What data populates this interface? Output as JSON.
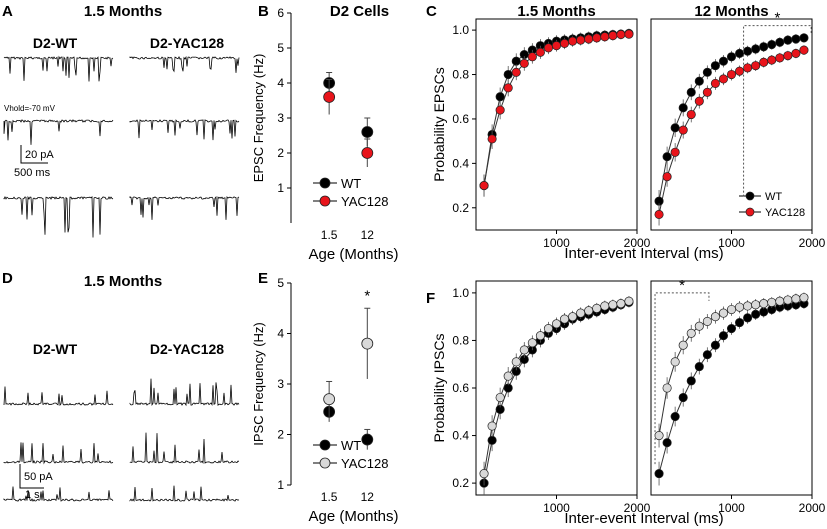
{
  "panel_letters": {
    "a": "A",
    "b": "B",
    "c": "C",
    "d": "D",
    "e": "E",
    "f": "F"
  },
  "traces": {
    "top_title": "1.5 Months",
    "bottom_title": "1.5 Months",
    "wt_label": "D2-WT",
    "yac_label": "D2-YAC128",
    "vhold_label": "Vhold=-70 mV",
    "epsc_scale_amp": "20 pA",
    "epsc_scale_time": "500 ms",
    "ipsc_scale_amp": "50 pA",
    "ipsc_scale_time": "1 s"
  },
  "colors": {
    "wt": "#000000",
    "yac_epsc": "#e8141b",
    "yac_ipsc": "#d9d9d9"
  },
  "chart_data": [
    {
      "id": "B",
      "type": "scatter",
      "title": "D2 Cells",
      "xlabel": "Age (Months)",
      "ylabel": "EPSC Frequency (Hz)",
      "categories": [
        "1.5",
        "12"
      ],
      "ylim": [
        0,
        6
      ],
      "yticks": [
        1,
        2,
        3,
        4,
        5,
        6
      ],
      "series": [
        {
          "name": "WT",
          "values": [
            4.0,
            2.6
          ],
          "err": [
            0.3,
            0.4
          ]
        },
        {
          "name": "YAC128",
          "values": [
            3.6,
            2.0
          ],
          "err": [
            0.5,
            0.4
          ]
        }
      ],
      "legend": "bottom-left"
    },
    {
      "id": "C1",
      "type": "line",
      "title": "1.5 Months",
      "xlabel": "",
      "ylabel": "Probability EPSCs",
      "xlim": [
        0,
        2000
      ],
      "xticks": [
        1000,
        2000
      ],
      "ylim": [
        0.1,
        1.05
      ],
      "yticks": [
        0.2,
        0.4,
        0.6,
        0.8,
        1.0
      ],
      "x": [
        100,
        200,
        300,
        400,
        500,
        600,
        700,
        800,
        900,
        1000,
        1100,
        1200,
        1300,
        1400,
        1500,
        1600,
        1700,
        1800,
        1900
      ],
      "series": [
        {
          "name": "WT",
          "values": [
            0.3,
            0.53,
            0.7,
            0.8,
            0.86,
            0.89,
            0.91,
            0.93,
            0.94,
            0.95,
            0.955,
            0.96,
            0.965,
            0.97,
            0.975,
            0.977,
            0.98,
            0.982,
            0.985
          ]
        },
        {
          "name": "YAC128",
          "values": [
            0.3,
            0.51,
            0.64,
            0.74,
            0.81,
            0.85,
            0.88,
            0.9,
            0.92,
            0.93,
            0.94,
            0.95,
            0.955,
            0.96,
            0.965,
            0.97,
            0.975,
            0.98,
            0.982
          ]
        }
      ]
    },
    {
      "id": "C2",
      "type": "line",
      "title": "12 Months",
      "annotation": "*",
      "xlabel": "Inter-event Interval (ms)",
      "ylabel": "",
      "xlim": [
        0,
        2000
      ],
      "xticks": [
        1000,
        2000
      ],
      "ylim": [
        0.1,
        1.05
      ],
      "x": [
        100,
        200,
        300,
        400,
        500,
        600,
        700,
        800,
        900,
        1000,
        1100,
        1200,
        1300,
        1400,
        1500,
        1600,
        1700,
        1800,
        1900
      ],
      "series": [
        {
          "name": "WT",
          "values": [
            0.23,
            0.43,
            0.56,
            0.65,
            0.72,
            0.77,
            0.81,
            0.84,
            0.86,
            0.88,
            0.895,
            0.905,
            0.915,
            0.925,
            0.935,
            0.945,
            0.955,
            0.96,
            0.965
          ]
        },
        {
          "name": "YAC128",
          "values": [
            0.17,
            0.34,
            0.45,
            0.55,
            0.62,
            0.68,
            0.72,
            0.76,
            0.78,
            0.8,
            0.815,
            0.83,
            0.84,
            0.855,
            0.865,
            0.875,
            0.885,
            0.895,
            0.91
          ]
        }
      ],
      "legend": [
        "WT",
        "YAC128"
      ]
    },
    {
      "id": "E",
      "type": "scatter",
      "annotation": "*",
      "xlabel": "Age (Months)",
      "ylabel": "IPSC Frequency (Hz)",
      "categories": [
        "1.5",
        "12"
      ],
      "ylim": [
        1,
        5
      ],
      "yticks": [
        1,
        2,
        3,
        4,
        5
      ],
      "series": [
        {
          "name": "WT",
          "values": [
            2.45,
            1.9
          ],
          "err": [
            0.2,
            0.2
          ]
        },
        {
          "name": "YAC128",
          "values": [
            2.7,
            3.8
          ],
          "err": [
            0.35,
            0.7
          ]
        }
      ],
      "legend": "bottom-left"
    },
    {
      "id": "F1",
      "type": "line",
      "xlabel": "",
      "ylabel": "Probability IPSCs",
      "xlim": [
        0,
        2000
      ],
      "xticks": [
        1000,
        2000
      ],
      "ylim": [
        0.15,
        1.05
      ],
      "yticks": [
        0.2,
        0.4,
        0.6,
        0.8,
        1.0
      ],
      "x": [
        100,
        200,
        300,
        400,
        500,
        600,
        700,
        800,
        900,
        1000,
        1100,
        1200,
        1300,
        1400,
        1500,
        1600,
        1700,
        1800,
        1900
      ],
      "series": [
        {
          "name": "WT",
          "values": [
            0.2,
            0.38,
            0.51,
            0.6,
            0.67,
            0.72,
            0.76,
            0.8,
            0.83,
            0.85,
            0.87,
            0.89,
            0.9,
            0.91,
            0.92,
            0.93,
            0.94,
            0.95,
            0.96
          ]
        },
        {
          "name": "YAC128",
          "values": [
            0.24,
            0.44,
            0.56,
            0.65,
            0.71,
            0.76,
            0.79,
            0.82,
            0.85,
            0.87,
            0.89,
            0.9,
            0.915,
            0.925,
            0.935,
            0.945,
            0.95,
            0.955,
            0.965
          ]
        }
      ]
    },
    {
      "id": "F2",
      "type": "line",
      "annotation": "*",
      "xlabel": "Inter-event Interval (ms)",
      "ylabel": "",
      "xlim": [
        0,
        2000
      ],
      "xticks": [
        1000,
        2000
      ],
      "ylim": [
        0.15,
        1.05
      ],
      "x": [
        100,
        200,
        300,
        400,
        500,
        600,
        700,
        800,
        900,
        1000,
        1100,
        1200,
        1300,
        1400,
        1500,
        1600,
        1700,
        1800,
        1900
      ],
      "series": [
        {
          "name": "WT",
          "values": [
            0.24,
            0.37,
            0.48,
            0.56,
            0.63,
            0.69,
            0.74,
            0.78,
            0.82,
            0.85,
            0.875,
            0.895,
            0.91,
            0.92,
            0.93,
            0.94,
            0.945,
            0.95,
            0.955
          ]
        },
        {
          "name": "YAC128",
          "values": [
            0.4,
            0.6,
            0.71,
            0.78,
            0.83,
            0.86,
            0.88,
            0.9,
            0.915,
            0.93,
            0.94,
            0.945,
            0.95,
            0.955,
            0.96,
            0.965,
            0.97,
            0.975,
            0.98
          ]
        }
      ]
    }
  ]
}
